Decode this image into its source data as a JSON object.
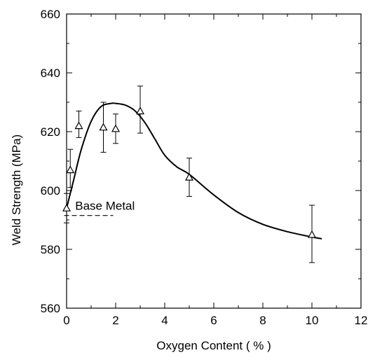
{
  "chart_data": {
    "type": "scatter",
    "title": "",
    "xlabel": "Oxygen Content ( % )",
    "ylabel": "Weld Strength (MPa)",
    "xlim": [
      0,
      12
    ],
    "ylim": [
      560,
      660
    ],
    "x_ticks": [
      0,
      2,
      4,
      6,
      8,
      10,
      12
    ],
    "y_ticks": [
      560,
      580,
      600,
      620,
      640,
      660
    ],
    "x_tick_labels": [
      "0",
      "2",
      "4",
      "6",
      "8",
      "10",
      "12"
    ],
    "y_tick_labels": [
      "560",
      "580",
      "600",
      "620",
      "640",
      "660"
    ],
    "grid": false,
    "points": [
      {
        "x": 0.0,
        "y": 594,
        "err_low": 589,
        "err_high": 599
      },
      {
        "x": 0.15,
        "y": 607,
        "err_low": 601,
        "err_high": 614
      },
      {
        "x": 0.5,
        "y": 622,
        "err_low": 618,
        "err_high": 627
      },
      {
        "x": 1.5,
        "y": 621.5,
        "err_low": 613,
        "err_high": 630
      },
      {
        "x": 2.0,
        "y": 621,
        "err_low": 616,
        "err_high": 626
      },
      {
        "x": 3.0,
        "y": 627,
        "err_low": 619.5,
        "err_high": 635.5
      },
      {
        "x": 5.0,
        "y": 604.5,
        "err_low": 598,
        "err_high": 611
      },
      {
        "x": 10.0,
        "y": 585,
        "err_low": 575.5,
        "err_high": 595
      }
    ],
    "fit_curve": {
      "x": [
        0.0,
        0.3,
        0.6,
        1.0,
        1.4,
        1.8,
        2.0,
        2.4,
        2.8,
        3.2,
        3.6,
        4.0,
        4.5,
        5.0,
        6.0,
        7.0,
        8.0,
        9.0,
        10.0,
        10.4
      ],
      "y": [
        594,
        604,
        614,
        623.5,
        628.5,
        629.6,
        629.6,
        629,
        627,
        623,
        617.5,
        612,
        608,
        605.5,
        598.5,
        592.5,
        588.5,
        586,
        584.2,
        583.6
      ]
    },
    "annotation": {
      "text": "Base Metal",
      "line_x": [
        -0.1,
        1.9
      ],
      "line_y": 591.5
    }
  }
}
